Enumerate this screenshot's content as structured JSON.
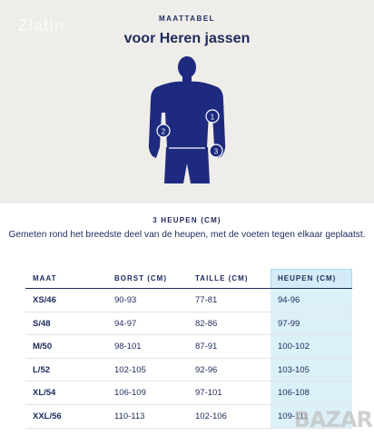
{
  "header": {
    "watermark": "Zlatin",
    "kicker": "MAATTABEL",
    "title": "voor Heren jassen"
  },
  "figure": {
    "markers": [
      "1",
      "2",
      "3"
    ],
    "colors": {
      "body": "#1e2a80",
      "background": "#efede9",
      "marker": "#ffffff"
    }
  },
  "section": {
    "title": "3 HEUPEN (CM)",
    "description": "Gemeten rond het breedste deel van de heupen, met de voeten tegen elkaar geplaatst."
  },
  "table": {
    "headers": [
      "MAAT",
      "BORST (CM)",
      "TAILLE (CM)",
      "HEUPEN (CM)"
    ],
    "rows": [
      [
        "XS/46",
        "90-93",
        "77-81",
        "94-96"
      ],
      [
        "S/48",
        "94-97",
        "82-86",
        "97-99"
      ],
      [
        "M/50",
        "98-101",
        "87-91",
        "100-102"
      ],
      [
        "L/52",
        "102-105",
        "92-96",
        "103-105"
      ],
      [
        "XL/54",
        "106-109",
        "97-101",
        "106-108"
      ],
      [
        "XXL/56",
        "110-113",
        "102-106",
        "109-111"
      ]
    ],
    "highlight_color": "#dcf0f8"
  },
  "badge": {
    "text": "BAZAR"
  }
}
